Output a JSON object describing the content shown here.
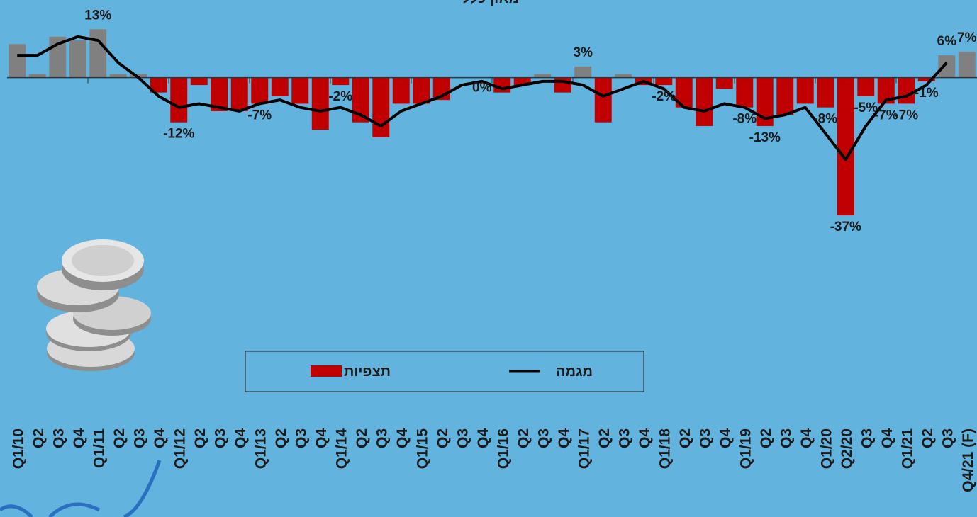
{
  "chart_data": {
    "type": "bar",
    "title": "מאזן כללי",
    "categories": [
      "Q1/10",
      "Q2",
      "Q3",
      "Q4",
      "Q1/11",
      "Q2",
      "Q3",
      "Q4",
      "Q1/12",
      "Q2",
      "Q3",
      "Q4",
      "Q1/13",
      "Q2",
      "Q3",
      "Q4",
      "Q1/14",
      "Q2",
      "Q3",
      "Q4",
      "Q1/15",
      "Q2",
      "Q3",
      "Q4",
      "Q1/16",
      "Q2",
      "Q3",
      "Q4",
      "Q1/17",
      "Q2",
      "Q3",
      "Q4",
      "Q1/18",
      "Q2",
      "Q3",
      "Q4",
      "Q1/19",
      "Q2",
      "Q3",
      "Q4",
      "Q1/20",
      "Q2/20",
      "Q3",
      "Q4",
      "Q1/21",
      "Q2",
      "Q3",
      "Q4/21 (F)"
    ],
    "series": [
      {
        "name": "תצפיות",
        "color": "#c00000",
        "positive_color": "#808080",
        "values": [
          9,
          1,
          11,
          10,
          13,
          1,
          1,
          -4,
          -12,
          -2,
          -9,
          -9,
          -7,
          -5,
          -7,
          -14,
          -2,
          -12,
          -16,
          -7,
          -7,
          -6,
          0,
          0,
          -4,
          -2,
          1,
          -4,
          3,
          -12,
          1,
          -2,
          -2,
          -8,
          -13,
          -3,
          -8,
          -13,
          -10,
          -7,
          -8,
          -37,
          -5,
          -7,
          -7,
          -1,
          6,
          7
        ],
        "value_labels": [
          null,
          null,
          null,
          null,
          "13%",
          null,
          null,
          null,
          "-12%",
          null,
          null,
          null,
          "-7%",
          null,
          null,
          null,
          "-2%",
          null,
          null,
          null,
          null,
          null,
          null,
          "0%",
          null,
          null,
          null,
          null,
          "3%",
          null,
          null,
          null,
          "-2%",
          null,
          null,
          null,
          "-8%",
          "-13%",
          null,
          null,
          "-8%",
          "-37%",
          "-5%",
          "-7%",
          "-7%",
          "-1%",
          "6%",
          "7%"
        ]
      },
      {
        "name": "מגמה",
        "color": "#000000",
        "type": "line",
        "values": [
          6,
          6,
          9,
          11,
          10,
          4,
          0,
          -5,
          -8,
          -7,
          -8,
          -9,
          -7,
          -6,
          -8,
          -9,
          -8,
          -10,
          -13,
          -9,
          -7,
          -5,
          -2,
          -1,
          -3,
          -2,
          -1,
          -1,
          -2,
          -5,
          -3,
          -1,
          -3,
          -8,
          -9,
          -7,
          -8,
          -11,
          -10,
          -8,
          -15,
          -22,
          -13,
          -6,
          -5,
          -2,
          4,
          null
        ]
      }
    ],
    "ylim": [
      -60,
      18
    ]
  }
}
